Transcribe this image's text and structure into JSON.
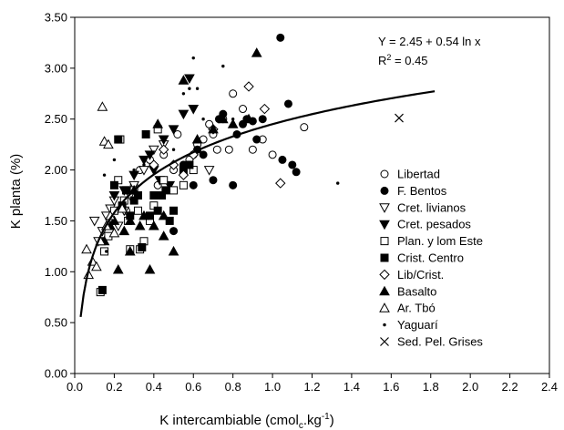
{
  "chart_data": {
    "type": "scatter",
    "xlabel": "K intercambiable (cmol",
    "xlabel_sub": "c",
    "xlabel_end": ".kg",
    "xlabel_sup": "-1",
    "xlabel_close": ")",
    "ylabel": "K planta (%)",
    "xlim": [
      0,
      2.4
    ],
    "ylim": [
      0,
      3.5
    ],
    "xticks": [
      "0.0",
      "0.2",
      "0.4",
      "0.6",
      "0.8",
      "1.0",
      "1.2",
      "1.4",
      "1.6",
      "1.8",
      "2.0",
      "2.2",
      "2.4"
    ],
    "yticks": [
      "0.00",
      "0.50",
      "1.00",
      "1.50",
      "2.00",
      "2.50",
      "3.00",
      "3.50"
    ],
    "grid": false,
    "legend_position": "right",
    "equation": "Y = 2.45 + 0.54 ln x",
    "r2_prefix": "R",
    "r2_sup": "2",
    "r2_value": " = 0.45",
    "fit": {
      "a": 2.45,
      "b": 0.54,
      "x_range": [
        0.03,
        1.82
      ]
    },
    "series": [
      {
        "name": "Libertad",
        "marker": "circle-open",
        "points": [
          [
            0.26,
            1.6
          ],
          [
            0.3,
            1.85
          ],
          [
            0.33,
            2.0
          ],
          [
            0.38,
            2.1
          ],
          [
            0.45,
            2.15
          ],
          [
            0.5,
            2.0
          ],
          [
            0.52,
            2.35
          ],
          [
            0.55,
            2.05
          ],
          [
            0.6,
            2.15
          ],
          [
            0.62,
            2.25
          ],
          [
            0.65,
            2.3
          ],
          [
            0.68,
            2.45
          ],
          [
            0.7,
            2.35
          ],
          [
            0.72,
            2.2
          ],
          [
            0.75,
            2.5
          ],
          [
            0.78,
            2.2
          ],
          [
            0.8,
            2.75
          ],
          [
            0.85,
            2.6
          ],
          [
            0.9,
            2.2
          ],
          [
            0.95,
            2.3
          ],
          [
            1.0,
            2.15
          ],
          [
            1.16,
            2.42
          ],
          [
            0.42,
            1.85
          ],
          [
            0.58,
            2.1
          ]
        ]
      },
      {
        "name": "F. Bentos",
        "marker": "circle-filled",
        "points": [
          [
            0.5,
            1.4
          ],
          [
            0.6,
            1.85
          ],
          [
            0.65,
            2.15
          ],
          [
            0.7,
            1.9
          ],
          [
            0.73,
            2.5
          ],
          [
            0.75,
            2.55
          ],
          [
            0.8,
            1.85
          ],
          [
            0.82,
            2.35
          ],
          [
            0.85,
            2.45
          ],
          [
            0.87,
            2.5
          ],
          [
            0.9,
            2.48
          ],
          [
            0.92,
            2.3
          ],
          [
            0.95,
            2.5
          ],
          [
            1.04,
            3.3
          ],
          [
            1.05,
            2.1
          ],
          [
            1.08,
            2.65
          ],
          [
            1.1,
            2.05
          ],
          [
            1.12,
            1.98
          ],
          [
            0.62,
            2.2
          ],
          [
            0.55,
            2.05
          ]
        ]
      },
      {
        "name": "Cret. livianos",
        "marker": "triangle-down-open",
        "points": [
          [
            0.1,
            1.5
          ],
          [
            0.12,
            1.3
          ],
          [
            0.14,
            1.4
          ],
          [
            0.16,
            1.55
          ],
          [
            0.18,
            1.62
          ],
          [
            0.2,
            1.7
          ],
          [
            0.22,
            1.45
          ],
          [
            0.25,
            1.6
          ],
          [
            0.28,
            1.75
          ],
          [
            0.3,
            1.85
          ],
          [
            0.35,
            2.0
          ],
          [
            0.4,
            2.2
          ],
          [
            0.45,
            2.25
          ],
          [
            0.68,
            2.0
          ]
        ]
      },
      {
        "name": "Cret. pesados",
        "marker": "triangle-down-filled",
        "points": [
          [
            0.2,
            1.75
          ],
          [
            0.25,
            1.8
          ],
          [
            0.3,
            1.95
          ],
          [
            0.35,
            2.1
          ],
          [
            0.38,
            2.15
          ],
          [
            0.4,
            2.0
          ],
          [
            0.45,
            2.3
          ],
          [
            0.5,
            2.4
          ],
          [
            0.55,
            2.55
          ],
          [
            0.58,
            2.9
          ],
          [
            0.6,
            2.6
          ],
          [
            0.48,
            1.85
          ],
          [
            0.43,
            1.9
          ]
        ]
      },
      {
        "name": "Plan. y lom Este",
        "marker": "square-open",
        "points": [
          [
            0.13,
            0.8
          ],
          [
            0.15,
            1.2
          ],
          [
            0.17,
            1.35
          ],
          [
            0.18,
            1.5
          ],
          [
            0.2,
            1.6
          ],
          [
            0.22,
            1.9
          ],
          [
            0.23,
            2.3
          ],
          [
            0.25,
            1.7
          ],
          [
            0.27,
            1.5
          ],
          [
            0.28,
            1.22
          ],
          [
            0.3,
            1.8
          ],
          [
            0.32,
            1.6
          ],
          [
            0.33,
            1.22
          ],
          [
            0.35,
            1.3
          ],
          [
            0.38,
            1.5
          ],
          [
            0.4,
            1.65
          ],
          [
            0.42,
            2.4
          ],
          [
            0.45,
            1.9
          ],
          [
            0.5,
            1.8
          ],
          [
            0.55,
            1.85
          ],
          [
            0.6,
            2.0
          ]
        ]
      },
      {
        "name": "Crist. Centro",
        "marker": "square-filled",
        "points": [
          [
            0.14,
            0.82
          ],
          [
            0.2,
            1.85
          ],
          [
            0.22,
            2.3
          ],
          [
            0.24,
            1.65
          ],
          [
            0.26,
            1.8
          ],
          [
            0.28,
            1.55
          ],
          [
            0.3,
            1.7
          ],
          [
            0.32,
            1.75
          ],
          [
            0.34,
            1.24
          ],
          [
            0.36,
            2.35
          ],
          [
            0.38,
            1.55
          ],
          [
            0.4,
            1.75
          ],
          [
            0.42,
            1.6
          ],
          [
            0.44,
            1.75
          ],
          [
            0.46,
            1.8
          ],
          [
            0.48,
            1.5
          ],
          [
            0.5,
            1.6
          ],
          [
            0.55,
            2.0
          ],
          [
            0.58,
            2.05
          ]
        ]
      },
      {
        "name": "Lib/Crist.",
        "marker": "diamond-open",
        "points": [
          [
            0.4,
            2.05
          ],
          [
            0.45,
            2.2
          ],
          [
            0.5,
            2.05
          ],
          [
            0.55,
            1.95
          ],
          [
            0.6,
            2.15
          ],
          [
            0.7,
            2.4
          ],
          [
            0.88,
            2.82
          ],
          [
            0.96,
            2.6
          ],
          [
            1.04,
            1.87
          ]
        ]
      },
      {
        "name": "Basalto",
        "marker": "triangle-up-filled",
        "points": [
          [
            0.15,
            1.3
          ],
          [
            0.18,
            1.45
          ],
          [
            0.2,
            1.5
          ],
          [
            0.22,
            1.02
          ],
          [
            0.25,
            1.4
          ],
          [
            0.28,
            1.5
          ],
          [
            0.3,
            1.8
          ],
          [
            0.33,
            1.45
          ],
          [
            0.35,
            1.55
          ],
          [
            0.38,
            1.02
          ],
          [
            0.4,
            1.45
          ],
          [
            0.42,
            2.45
          ],
          [
            0.45,
            1.55
          ],
          [
            0.5,
            1.2
          ],
          [
            0.55,
            2.88
          ],
          [
            0.62,
            2.3
          ],
          [
            0.7,
            2.4
          ],
          [
            0.75,
            2.5
          ],
          [
            0.8,
            2.45
          ],
          [
            0.88,
            2.5
          ],
          [
            0.92,
            3.15
          ],
          [
            0.45,
            1.35
          ],
          [
            0.28,
            1.2
          ]
        ]
      },
      {
        "name": "Ar. Tbó",
        "marker": "triangle-up-open",
        "points": [
          [
            0.06,
            1.22
          ],
          [
            0.07,
            0.97
          ],
          [
            0.09,
            1.1
          ],
          [
            0.11,
            1.05
          ],
          [
            0.13,
            1.3
          ],
          [
            0.14,
            2.62
          ],
          [
            0.15,
            2.28
          ],
          [
            0.16,
            1.45
          ],
          [
            0.17,
            2.25
          ],
          [
            0.18,
            1.55
          ],
          [
            0.2,
            1.38
          ],
          [
            0.24,
            1.62
          ]
        ]
      },
      {
        "name": "Yaguarí",
        "marker": "dot",
        "points": [
          [
            0.15,
            1.95
          ],
          [
            0.2,
            2.1
          ],
          [
            0.3,
            2.0
          ],
          [
            0.35,
            2.05
          ],
          [
            0.5,
            2.2
          ],
          [
            0.55,
            2.75
          ],
          [
            0.58,
            2.8
          ],
          [
            0.6,
            3.1
          ],
          [
            0.62,
            2.8
          ],
          [
            0.65,
            2.5
          ],
          [
            0.75,
            3.02
          ],
          [
            1.33,
            1.87
          ],
          [
            0.8,
            2.5
          ],
          [
            0.16,
            1.2
          ]
        ]
      },
      {
        "name": "Sed. Pel. Grises",
        "marker": "x",
        "points": [
          [
            1.64,
            2.51
          ]
        ]
      }
    ]
  }
}
